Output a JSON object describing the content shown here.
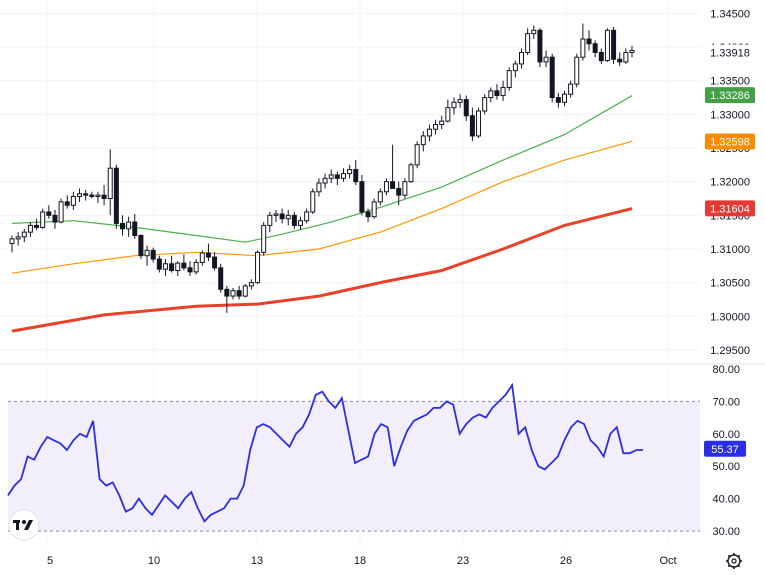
{
  "chart_data": [
    {
      "type": "candlestick",
      "title": "",
      "price_axis": {
        "ticks": [
          "1.34500",
          "1.34000",
          "1.33500",
          "1.33000",
          "1.32500",
          "1.32000",
          "1.31500",
          "1.31000",
          "1.30500",
          "1.30000",
          "1.29500"
        ],
        "ylim": [
          1.2935,
          1.347
        ]
      },
      "date_axis": {
        "ticks": [
          "5",
          "10",
          "13",
          "18",
          "23",
          "26",
          "Oct"
        ]
      },
      "candles_ohlc": [
        [
          1.3108,
          1.312,
          1.3095,
          1.3115
        ],
        [
          1.3115,
          1.3125,
          1.3105,
          1.3118
        ],
        [
          1.3118,
          1.313,
          1.311,
          1.3125
        ],
        [
          1.3125,
          1.314,
          1.3118,
          1.3135
        ],
        [
          1.3135,
          1.3145,
          1.3128,
          1.3132
        ],
        [
          1.3132,
          1.316,
          1.313,
          1.3155
        ],
        [
          1.3155,
          1.3165,
          1.3145,
          1.315
        ],
        [
          1.315,
          1.3158,
          1.313,
          1.314
        ],
        [
          1.314,
          1.3175,
          1.3138,
          1.317
        ],
        [
          1.317,
          1.318,
          1.316,
          1.3165
        ],
        [
          1.3165,
          1.3185,
          1.3158,
          1.3178
        ],
        [
          1.3178,
          1.319,
          1.317,
          1.3182
        ],
        [
          1.3182,
          1.3188,
          1.3172,
          1.318
        ],
        [
          1.318,
          1.3185,
          1.3175,
          1.3178
        ],
        [
          1.3178,
          1.3185,
          1.3168,
          1.318
        ],
        [
          1.318,
          1.3195,
          1.3165,
          1.3175
        ],
        [
          1.3175,
          1.3248,
          1.315,
          1.322
        ],
        [
          1.322,
          1.3225,
          1.313,
          1.3138
        ],
        [
          1.3138,
          1.315,
          1.312,
          1.313
        ],
        [
          1.313,
          1.3148,
          1.3118,
          1.314
        ],
        [
          1.314,
          1.3152,
          1.3115,
          1.312
        ],
        [
          1.312,
          1.3122,
          1.3085,
          1.309
        ],
        [
          1.309,
          1.3105,
          1.3075,
          1.3098
        ],
        [
          1.3098,
          1.3102,
          1.308,
          1.3085
        ],
        [
          1.3085,
          1.309,
          1.3065,
          1.307
        ],
        [
          1.307,
          1.3085,
          1.306,
          1.3078
        ],
        [
          1.3078,
          1.309,
          1.3065,
          1.3068
        ],
        [
          1.3068,
          1.3082,
          1.306,
          1.3079
        ],
        [
          1.3079,
          1.3092,
          1.3068,
          1.3072
        ],
        [
          1.3072,
          1.3082,
          1.306,
          1.3066
        ],
        [
          1.3066,
          1.3085,
          1.3062,
          1.308
        ],
        [
          1.308,
          1.3098,
          1.3075,
          1.3094
        ],
        [
          1.3094,
          1.3108,
          1.3082,
          1.3088
        ],
        [
          1.3088,
          1.3095,
          1.3068,
          1.3072
        ],
        [
          1.3072,
          1.3078,
          1.3035,
          1.304
        ],
        [
          1.304,
          1.3045,
          1.3005,
          1.303
        ],
        [
          1.303,
          1.3042,
          1.3025,
          1.3038
        ],
        [
          1.3038,
          1.3045,
          1.3025,
          1.303
        ],
        [
          1.303,
          1.3048,
          1.3028,
          1.3045
        ],
        [
          1.3045,
          1.3055,
          1.304,
          1.305
        ],
        [
          1.305,
          1.3098,
          1.3048,
          1.3095
        ],
        [
          1.3095,
          1.314,
          1.309,
          1.3135
        ],
        [
          1.3135,
          1.3155,
          1.3125,
          1.315
        ],
        [
          1.315,
          1.3158,
          1.314,
          1.3152
        ],
        [
          1.3152,
          1.316,
          1.3138,
          1.3145
        ],
        [
          1.3145,
          1.3158,
          1.3135,
          1.315
        ],
        [
          1.315,
          1.3155,
          1.313,
          1.3135
        ],
        [
          1.3135,
          1.3148,
          1.3128,
          1.3142
        ],
        [
          1.3142,
          1.316,
          1.3138,
          1.3155
        ],
        [
          1.3155,
          1.319,
          1.3152,
          1.3185
        ],
        [
          1.3185,
          1.3205,
          1.3178,
          1.3198
        ],
        [
          1.3198,
          1.3212,
          1.319,
          1.3205
        ],
        [
          1.3205,
          1.3218,
          1.3198,
          1.321
        ],
        [
          1.321,
          1.3215,
          1.3195,
          1.3205
        ],
        [
          1.3205,
          1.322,
          1.32,
          1.3212
        ],
        [
          1.3212,
          1.3225,
          1.3205,
          1.3218
        ],
        [
          1.3218,
          1.3232,
          1.3195,
          1.32
        ],
        [
          1.32,
          1.321,
          1.315,
          1.3155
        ],
        [
          1.3155,
          1.316,
          1.314,
          1.3148
        ],
        [
          1.3148,
          1.3175,
          1.3145,
          1.317
        ],
        [
          1.317,
          1.319,
          1.3165,
          1.3185
        ],
        [
          1.3185,
          1.3205,
          1.318,
          1.32
        ],
        [
          1.32,
          1.3255,
          1.3195,
          1.319
        ],
        [
          1.319,
          1.32,
          1.3165,
          1.318
        ],
        [
          1.318,
          1.3205,
          1.3175,
          1.32
        ],
        [
          1.32,
          1.3228,
          1.3198,
          1.3225
        ],
        [
          1.3225,
          1.326,
          1.322,
          1.3255
        ],
        [
          1.3255,
          1.3275,
          1.3245,
          1.3268
        ],
        [
          1.3268,
          1.3285,
          1.326,
          1.3278
        ],
        [
          1.3278,
          1.3292,
          1.327,
          1.3285
        ],
        [
          1.3285,
          1.3298,
          1.3278,
          1.329
        ],
        [
          1.329,
          1.3322,
          1.3288,
          1.331
        ],
        [
          1.331,
          1.3325,
          1.33,
          1.3318
        ],
        [
          1.3318,
          1.333,
          1.331,
          1.3322
        ],
        [
          1.3322,
          1.3328,
          1.329,
          1.3298
        ],
        [
          1.3298,
          1.331,
          1.326,
          1.3268
        ],
        [
          1.3268,
          1.331,
          1.3265,
          1.3305
        ],
        [
          1.3305,
          1.333,
          1.33,
          1.3325
        ],
        [
          1.3325,
          1.334,
          1.3318,
          1.3335
        ],
        [
          1.3335,
          1.3345,
          1.3322,
          1.3328
        ],
        [
          1.3328,
          1.335,
          1.332,
          1.334
        ],
        [
          1.334,
          1.337,
          1.3335,
          1.3365
        ],
        [
          1.3365,
          1.338,
          1.3355,
          1.3375
        ],
        [
          1.3375,
          1.3398,
          1.3368,
          1.3392
        ],
        [
          1.3392,
          1.3428,
          1.3388,
          1.342
        ],
        [
          1.342,
          1.3432,
          1.3412,
          1.3425
        ],
        [
          1.3425,
          1.3428,
          1.337,
          1.3378
        ],
        [
          1.3378,
          1.3395,
          1.337,
          1.3385
        ],
        [
          1.3385,
          1.339,
          1.3318,
          1.3325
        ],
        [
          1.3325,
          1.3332,
          1.331,
          1.3318
        ],
        [
          1.3318,
          1.3335,
          1.3312,
          1.333
        ],
        [
          1.333,
          1.335,
          1.3325,
          1.3345
        ],
        [
          1.3345,
          1.339,
          1.334,
          1.3385
        ],
        [
          1.3385,
          1.3435,
          1.338,
          1.3412
        ],
        [
          1.3412,
          1.3425,
          1.3395,
          1.3405
        ],
        [
          1.3405,
          1.341,
          1.3385,
          1.3392
        ],
        [
          1.3392,
          1.3398,
          1.3375,
          1.338
        ],
        [
          1.338,
          1.3428,
          1.3378,
          1.3425
        ],
        [
          1.3425,
          1.343,
          1.3375,
          1.3382
        ],
        [
          1.3382,
          1.3392,
          1.3372,
          1.3378
        ],
        [
          1.3378,
          1.3398,
          1.3375,
          1.3392
        ],
        [
          1.3392,
          1.3402,
          1.3385,
          1.3395
        ]
      ],
      "overlay_lines": [
        {
          "color": "#4caf50",
          "points": [
            [
              0,
              1.3138
            ],
            [
              10,
              1.3142
            ],
            [
              20,
              1.3132
            ],
            [
              30,
              1.312
            ],
            [
              38,
              1.311
            ],
            [
              44,
              1.3122
            ],
            [
              52,
              1.314
            ],
            [
              60,
              1.3162
            ],
            [
              70,
              1.3192
            ],
            [
              80,
              1.3232
            ],
            [
              90,
              1.327
            ],
            [
              98,
              1.3312
            ],
            [
              101,
              1.3328
            ]
          ]
        },
        {
          "color": "#ff9800",
          "points": [
            [
              0,
              1.3064
            ],
            [
              10,
              1.3078
            ],
            [
              20,
              1.309
            ],
            [
              30,
              1.3095
            ],
            [
              40,
              1.309
            ],
            [
              50,
              1.31
            ],
            [
              60,
              1.3125
            ],
            [
              70,
              1.316
            ],
            [
              80,
              1.32
            ],
            [
              90,
              1.3232
            ],
            [
              101,
              1.326
            ]
          ]
        },
        {
          "color": "#e8412c",
          "points": [
            [
              0,
              1.2978
            ],
            [
              15,
              1.3002
            ],
            [
              30,
              1.3015
            ],
            [
              40,
              1.3018
            ],
            [
              50,
              1.303
            ],
            [
              60,
              1.305
            ],
            [
              70,
              1.3068
            ],
            [
              80,
              1.31
            ],
            [
              90,
              1.3135
            ],
            [
              101,
              1.316
            ]
          ]
        }
      ],
      "price_badges": [
        {
          "text": "1.33918",
          "color": "#ffffff",
          "text_color": "#131722",
          "value": 1.33918
        },
        {
          "text": "1.33286",
          "color": "#43a047",
          "text_color": "#ffffff",
          "value": 1.33286
        },
        {
          "text": "1.32598",
          "color": "#fb8c00",
          "text_color": "#ffffff",
          "value": 1.32598
        },
        {
          "text": "1.31604",
          "color": "#e53935",
          "text_color": "#ffffff",
          "value": 1.31604
        }
      ]
    },
    {
      "type": "line",
      "title": "",
      "y_axis": {
        "ticks": [
          "80.00",
          "70.00",
          "60.00",
          "50.00",
          "40.00",
          "30.00"
        ],
        "ylim": [
          30,
          80
        ]
      },
      "band": [
        30,
        70
      ],
      "series": [
        {
          "color": "#2a2ee8",
          "values": [
            41,
            44,
            46,
            53,
            52,
            56,
            59,
            58,
            57,
            55,
            58,
            60,
            59,
            64,
            46,
            44,
            45,
            41,
            36,
            37,
            40,
            37,
            35,
            38,
            41,
            39,
            37,
            40,
            42,
            37,
            33,
            35,
            36,
            37,
            40,
            40,
            44,
            55,
            62,
            63,
            62,
            60,
            58,
            56,
            60,
            62,
            66,
            72,
            73,
            70,
            68,
            71,
            61,
            51,
            52,
            53,
            60,
            63,
            62,
            50,
            56,
            61,
            64,
            65,
            66,
            68,
            68,
            70,
            69,
            60,
            63,
            65,
            66,
            65,
            68,
            70,
            72,
            75,
            60,
            62,
            55,
            50,
            49,
            51,
            53,
            58,
            62,
            64,
            63,
            58,
            56,
            53,
            60,
            62,
            54,
            54,
            55,
            55
          ]
        }
      ],
      "value_badge": {
        "text": "55.37",
        "color": "#2a2ee8",
        "value": 55.37
      }
    }
  ],
  "icons": {
    "logo": "tradingview-logo",
    "settings": "gear-icon"
  }
}
